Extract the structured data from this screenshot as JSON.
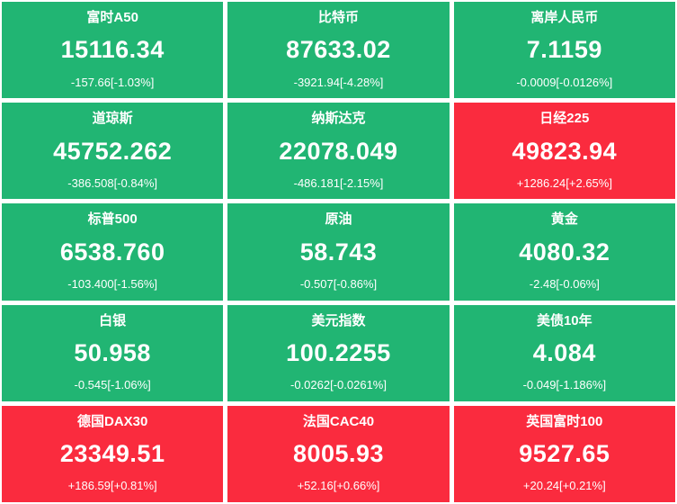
{
  "colors": {
    "up_red": "#fa2b3e",
    "down_green": "#21b573",
    "text": "#ffffff",
    "gap_background": "#ffffff"
  },
  "tiles": [
    {
      "name": "富时A50",
      "value": "15116.34",
      "change": "-157.66[-1.03%]",
      "direction": "down"
    },
    {
      "name": "比特币",
      "value": "87633.02",
      "change": "-3921.94[-4.28%]",
      "direction": "down"
    },
    {
      "name": "离岸人民币",
      "value": "7.1159",
      "change": "-0.0009[-0.0126%]",
      "direction": "down"
    },
    {
      "name": "道琼斯",
      "value": "45752.262",
      "change": "-386.508[-0.84%]",
      "direction": "down"
    },
    {
      "name": "纳斯达克",
      "value": "22078.049",
      "change": "-486.181[-2.15%]",
      "direction": "down"
    },
    {
      "name": "日经225",
      "value": "49823.94",
      "change": "+1286.24[+2.65%]",
      "direction": "up"
    },
    {
      "name": "标普500",
      "value": "6538.760",
      "change": "-103.400[-1.56%]",
      "direction": "down"
    },
    {
      "name": "原油",
      "value": "58.743",
      "change": "-0.507[-0.86%]",
      "direction": "down"
    },
    {
      "name": "黄金",
      "value": "4080.32",
      "change": "-2.48[-0.06%]",
      "direction": "down"
    },
    {
      "name": "白银",
      "value": "50.958",
      "change": "-0.545[-1.06%]",
      "direction": "down"
    },
    {
      "name": "美元指数",
      "value": "100.2255",
      "change": "-0.0262[-0.0261%]",
      "direction": "down"
    },
    {
      "name": "美债10年",
      "value": "4.084",
      "change": "-0.049[-1.186%]",
      "direction": "down"
    },
    {
      "name": "德国DAX30",
      "value": "23349.51",
      "change": "+186.59[+0.81%]",
      "direction": "up"
    },
    {
      "name": "法国CAC40",
      "value": "8005.93",
      "change": "+52.16[+0.66%]",
      "direction": "up"
    },
    {
      "name": "英国富时100",
      "value": "9527.65",
      "change": "+20.24[+0.21%]",
      "direction": "up"
    }
  ]
}
